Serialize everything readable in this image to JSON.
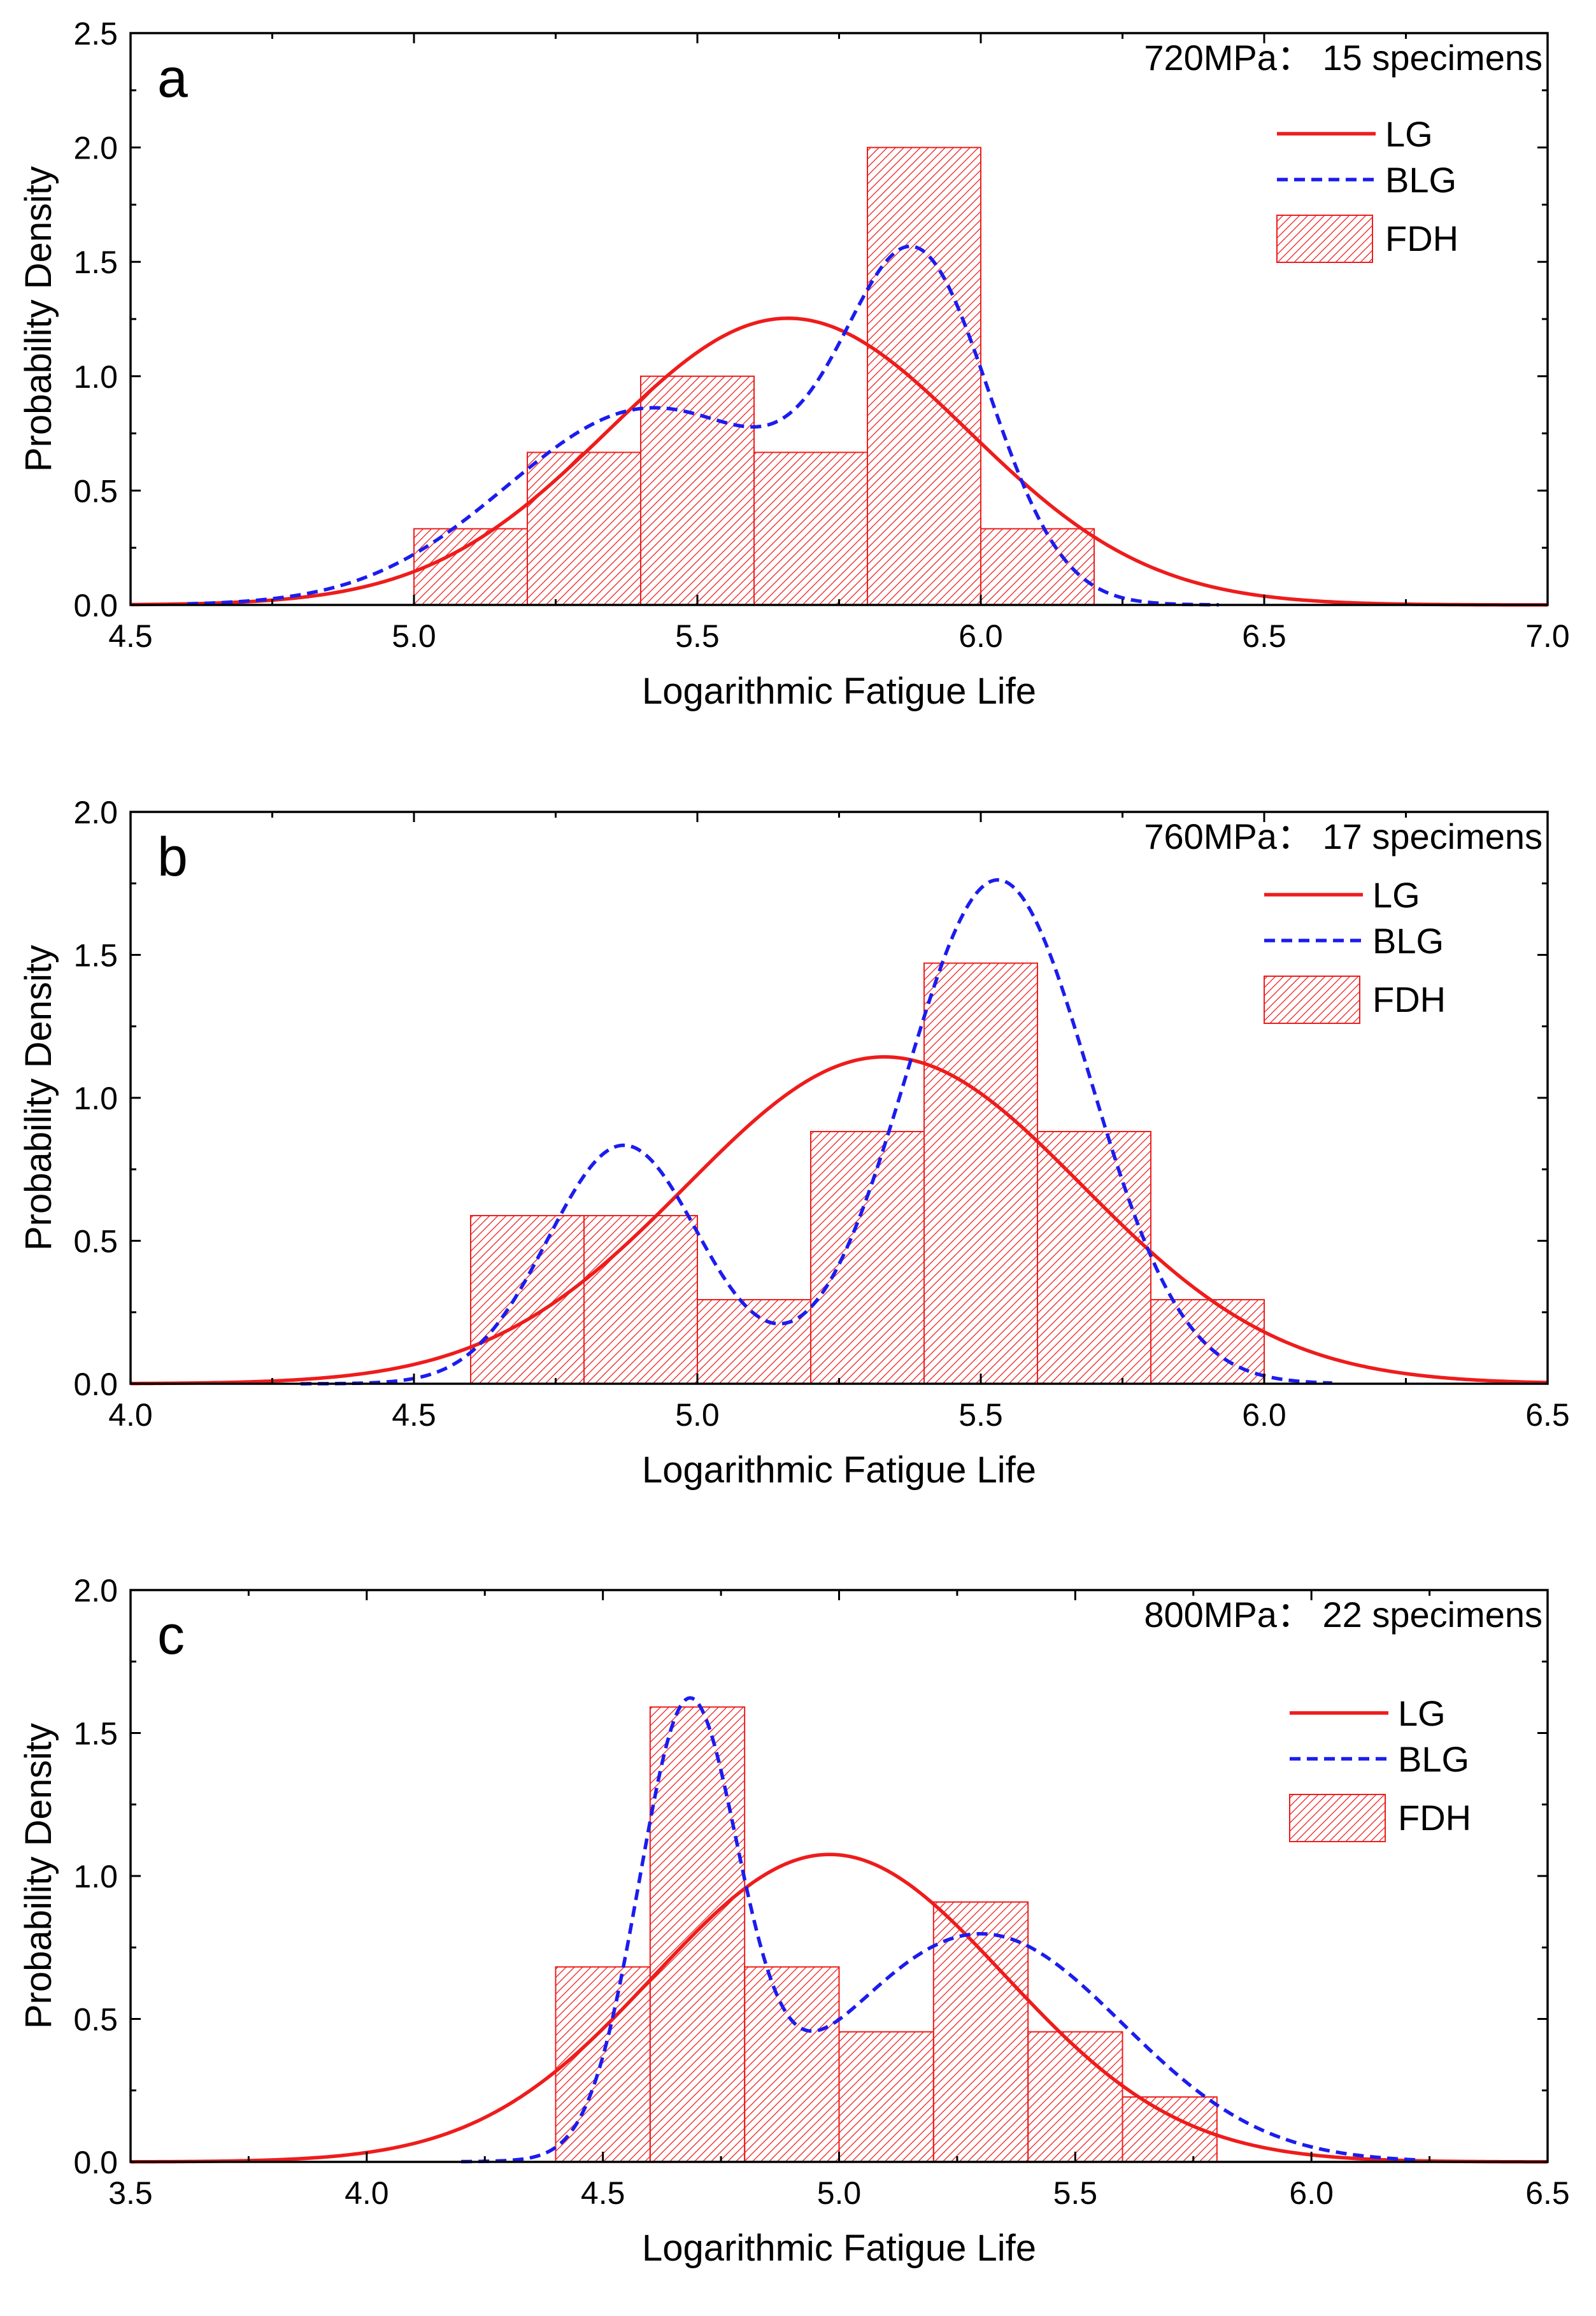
{
  "colors": {
    "lg": "#ee1c1c",
    "blg": "#1c1cee",
    "fdh": "#ee1c1c",
    "axis": "#000000"
  },
  "legend": {
    "lg": "LG",
    "blg": "BLG",
    "fdh": "FDH"
  },
  "chart_data": [
    {
      "type": "bar",
      "panel_label": "a",
      "annotation": "720MPa： 15 specimens",
      "xlabel": "Logarithmic Fatigue Life",
      "ylabel": "Probability Density",
      "xlim": [
        4.5,
        7.0
      ],
      "ylim": [
        0,
        2.5
      ],
      "xticks": [
        "4.5",
        "5.0",
        "5.5",
        "6.0",
        "6.5",
        "7.0"
      ],
      "yticks": [
        "0.0",
        "0.5",
        "1.0",
        "1.5",
        "2.0",
        "2.5"
      ],
      "bins": [
        {
          "from": 5.0,
          "to": 5.2,
          "value": 0.333
        },
        {
          "from": 5.2,
          "to": 5.4,
          "value": 0.667
        },
        {
          "from": 5.4,
          "to": 5.6,
          "value": 1.0
        },
        {
          "from": 5.6,
          "to": 5.8,
          "value": 0.667
        },
        {
          "from": 5.8,
          "to": 6.0,
          "value": 2.0
        },
        {
          "from": 6.0,
          "to": 6.2,
          "value": 0.333
        }
      ],
      "lg": {
        "mean": 5.66,
        "sd": 0.3183
      },
      "blg": {
        "domain": [
          4.6,
          6.42
        ],
        "components": [
          {
            "weight": 0.55,
            "mean": 5.42,
            "sd": 0.255
          },
          {
            "weight": 0.45,
            "mean": 5.89,
            "sd": 0.128
          }
        ]
      }
    },
    {
      "type": "bar",
      "panel_label": "b",
      "annotation": "760MPa： 17 specimens",
      "xlabel": "Logarithmic Fatigue Life",
      "ylabel": "Probability Density",
      "xlim": [
        4.0,
        6.5
      ],
      "ylim": [
        0,
        2.0
      ],
      "xticks": [
        "4.0",
        "4.5",
        "5.0",
        "5.5",
        "6.0",
        "6.5"
      ],
      "yticks": [
        "0.0",
        "0.5",
        "1.0",
        "1.5",
        "2.0"
      ],
      "bins": [
        {
          "from": 4.6,
          "to": 4.8,
          "value": 0.588
        },
        {
          "from": 4.8,
          "to": 5.0,
          "value": 0.588
        },
        {
          "from": 5.0,
          "to": 5.2,
          "value": 0.294
        },
        {
          "from": 5.2,
          "to": 5.4,
          "value": 0.882
        },
        {
          "from": 5.4,
          "to": 5.6,
          "value": 1.471
        },
        {
          "from": 5.6,
          "to": 5.8,
          "value": 0.882
        },
        {
          "from": 5.8,
          "to": 6.0,
          "value": 0.294
        }
      ],
      "lg": {
        "mean": 5.33,
        "sd": 0.349
      },
      "blg": {
        "domain": [
          4.3,
          6.12
        ],
        "components": [
          {
            "weight": 0.28,
            "mean": 4.87,
            "sd": 0.134
          },
          {
            "weight": 0.72,
            "mean": 5.53,
            "sd": 0.163
          }
        ]
      }
    },
    {
      "type": "bar",
      "panel_label": "c",
      "annotation": "800MPa： 22 specimens",
      "xlabel": "Logarithmic Fatigue Life",
      "ylabel": "Probability Density",
      "xlim": [
        3.5,
        6.5
      ],
      "ylim": [
        0,
        2.0
      ],
      "xticks": [
        "3.5",
        "4.0",
        "4.5",
        "5.0",
        "5.5",
        "6.0",
        "6.5"
      ],
      "yticks": [
        "0.0",
        "0.5",
        "1.0",
        "1.5",
        "2.0"
      ],
      "bins": [
        {
          "from": 4.4,
          "to": 4.6,
          "value": 0.682
        },
        {
          "from": 4.6,
          "to": 4.8,
          "value": 1.591
        },
        {
          "from": 4.8,
          "to": 5.0,
          "value": 0.682
        },
        {
          "from": 5.0,
          "to": 5.2,
          "value": 0.455
        },
        {
          "from": 5.2,
          "to": 5.4,
          "value": 0.909
        },
        {
          "from": 5.4,
          "to": 5.6,
          "value": 0.455
        },
        {
          "from": 5.6,
          "to": 5.8,
          "value": 0.227
        }
      ],
      "lg": {
        "mean": 4.98,
        "sd": 0.371
      },
      "blg": {
        "domain": [
          4.2,
          6.22
        ],
        "components": [
          {
            "weight": 0.4,
            "mean": 4.68,
            "sd": 0.1045
          },
          {
            "weight": 0.6,
            "mean": 5.3,
            "sd": 0.3
          }
        ]
      }
    }
  ]
}
